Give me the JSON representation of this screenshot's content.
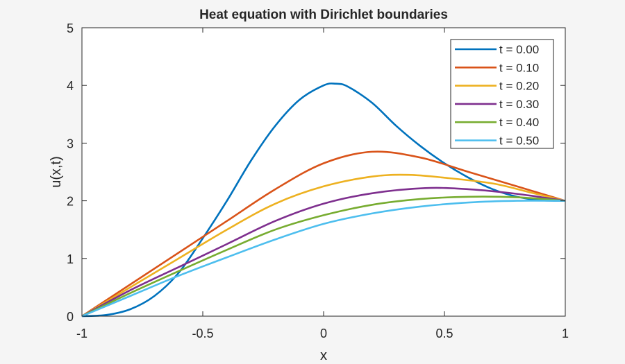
{
  "chart_data": {
    "type": "line",
    "title": "Heat equation with Dirichlet boundaries",
    "xlabel": "x",
    "ylabel": "u(x,t)",
    "xlim": [
      -1,
      1
    ],
    "ylim": [
      0,
      5
    ],
    "xticks": [
      "-1",
      "-0.5",
      "0",
      "0.5",
      "1"
    ],
    "yticks": [
      "0",
      "1",
      "2",
      "3",
      "4",
      "5"
    ],
    "grid": false,
    "legend_position": "northeast",
    "series": [
      {
        "name": "t = 0.00",
        "color": "#0072BD",
        "x": [
          -1,
          -0.9,
          -0.8,
          -0.7,
          -0.6,
          -0.5,
          -0.4,
          -0.3,
          -0.2,
          -0.1,
          0,
          0.05,
          0.1,
          0.2,
          0.3,
          0.4,
          0.5,
          0.6,
          0.7,
          0.8,
          0.9,
          1
        ],
        "y": [
          0,
          0.02,
          0.12,
          0.35,
          0.75,
          1.35,
          2.0,
          2.7,
          3.3,
          3.75,
          4.0,
          4.03,
          3.98,
          3.7,
          3.3,
          2.95,
          2.65,
          2.4,
          2.2,
          2.07,
          2.01,
          2.0
        ]
      },
      {
        "name": "t = 0.10",
        "color": "#D95319",
        "x": [
          -1,
          -0.8,
          -0.6,
          -0.4,
          -0.2,
          0,
          0.2,
          0.4,
          0.6,
          0.8,
          1
        ],
        "y": [
          0,
          0.55,
          1.1,
          1.65,
          2.2,
          2.65,
          2.85,
          2.75,
          2.5,
          2.25,
          2.0
        ]
      },
      {
        "name": "t = 0.20",
        "color": "#EDB120",
        "x": [
          -1,
          -0.8,
          -0.6,
          -0.4,
          -0.2,
          0,
          0.2,
          0.35,
          0.5,
          0.7,
          0.85,
          1
        ],
        "y": [
          0,
          0.5,
          1.0,
          1.5,
          1.95,
          2.25,
          2.42,
          2.45,
          2.4,
          2.3,
          2.15,
          2.0
        ]
      },
      {
        "name": "t = 0.30",
        "color": "#7E2F8E",
        "x": [
          -1,
          -0.8,
          -0.6,
          -0.4,
          -0.2,
          0,
          0.2,
          0.42,
          0.6,
          0.8,
          1
        ],
        "y": [
          0,
          0.45,
          0.85,
          1.25,
          1.65,
          1.95,
          2.13,
          2.22,
          2.2,
          2.12,
          2.0
        ]
      },
      {
        "name": "t = 0.40",
        "color": "#77AC30",
        "x": [
          -1,
          -0.8,
          -0.6,
          -0.4,
          -0.2,
          0,
          0.2,
          0.4,
          0.6,
          0.8,
          1
        ],
        "y": [
          0,
          0.4,
          0.78,
          1.15,
          1.5,
          1.75,
          1.93,
          2.03,
          2.07,
          2.06,
          2.0
        ]
      },
      {
        "name": "t = 0.50",
        "color": "#4DBEEE",
        "x": [
          -1,
          -0.8,
          -0.6,
          -0.4,
          -0.2,
          0,
          0.2,
          0.4,
          0.6,
          0.8,
          1
        ],
        "y": [
          0,
          0.35,
          0.7,
          1.02,
          1.33,
          1.6,
          1.78,
          1.9,
          1.97,
          2.0,
          2.0
        ]
      }
    ]
  }
}
